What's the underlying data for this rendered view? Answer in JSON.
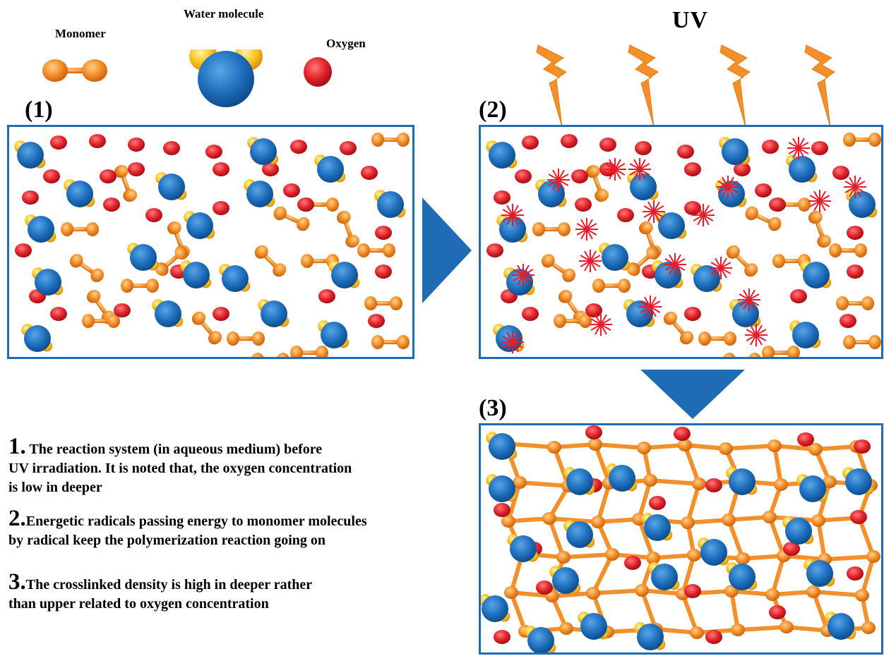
{
  "legend": {
    "monomer": "Monomer",
    "water": "Water molecule",
    "oxygen": "Oxygen"
  },
  "uv_label": "UV",
  "panels": {
    "p1": "(1)",
    "p2": "(2)",
    "p3": "(3)"
  },
  "captions": [
    {
      "num": "1.",
      "lines": [
        "The reaction system (in aqueous medium) before",
        "UV irradiation. It is noted that, the oxygen concentration",
        "is low in deeper"
      ]
    },
    {
      "num": "2.",
      "lines": [
        "Energetic radicals passing energy to monomer molecules",
        "by radical keep the polymerization reaction going on"
      ]
    },
    {
      "num": "3.",
      "lines": [
        "The crosslinked density is high in deeper rather",
        "than upper related to oxygen concentration"
      ]
    }
  ],
  "colors": {
    "border": "#1f6cb5",
    "arrow": "#1f6cb5",
    "water": "#1e6fbd",
    "oxygen": "#e0222a",
    "monomer": "#f3902a",
    "radical": "#e81c2b",
    "hydrogen": "#f6c21a"
  },
  "icons": [
    "monomer-icon",
    "water-molecule-icon",
    "oxygen-icon",
    "uv-bolt-icon",
    "radical-icon",
    "arrow-right-icon",
    "arrow-down-icon"
  ]
}
